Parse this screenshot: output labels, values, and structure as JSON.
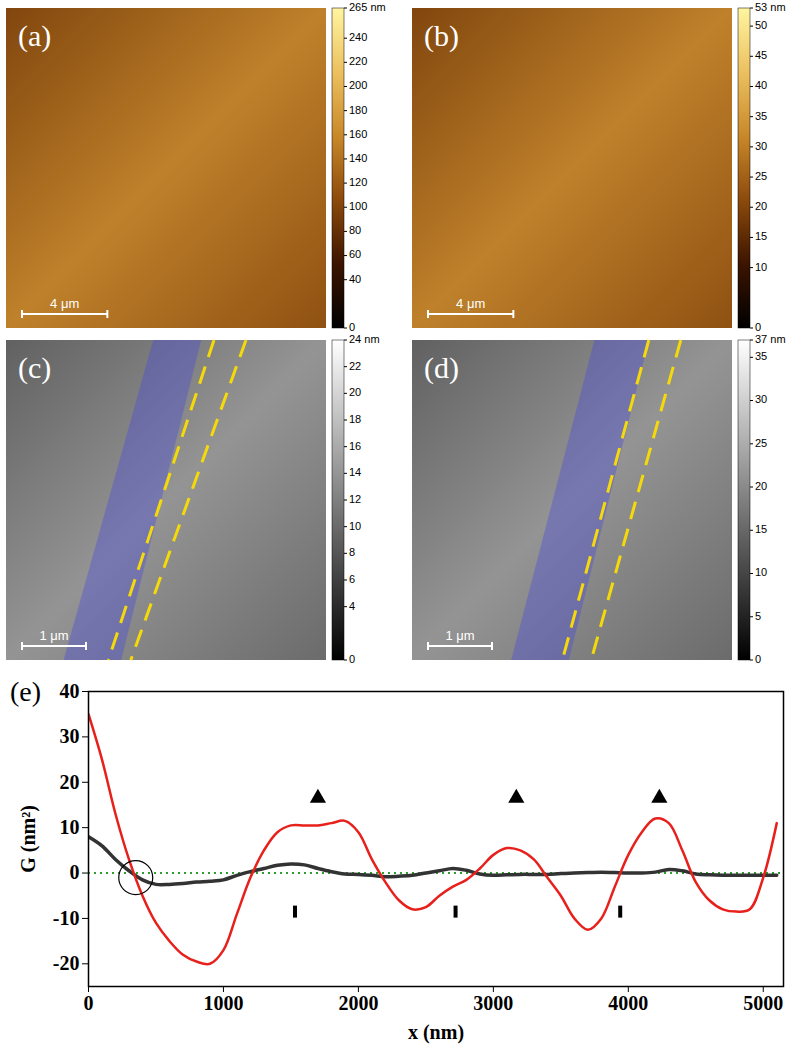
{
  "panels": [
    {
      "label": "(a)",
      "xlim": [
        0,
        15
      ],
      "scale_bar": {
        "label": "4 μm",
        "value": 4
      },
      "colorbar": {
        "range": [
          0,
          265
        ],
        "ticks": [
          {
            "value": 265,
            "label": "265 nm"
          },
          240,
          220,
          200,
          180,
          160,
          140,
          120,
          100,
          80,
          60,
          40,
          0
        ],
        "colors": [
          "#000000",
          "#3c1400",
          "#8c4a0c",
          "#c8882a",
          "#ecc060",
          "#fff5a0"
        ]
      }
    },
    {
      "label": "(b)",
      "xlim": [
        0,
        15
      ],
      "scale_bar": {
        "label": "4 μm",
        "value": 4
      },
      "colorbar": {
        "range": [
          0,
          53
        ],
        "ticks": [
          {
            "value": 53,
            "label": "53 nm"
          },
          50,
          45,
          40,
          35,
          30,
          25,
          20,
          15,
          10,
          0
        ],
        "colors": [
          "#000000",
          "#3c1400",
          "#8c4a0c",
          "#c8882a",
          "#ecc060",
          "#fff5a0"
        ]
      }
    },
    {
      "label": "(c)",
      "xlim": [
        0,
        5
      ],
      "scale_bar": {
        "label": "1 μm",
        "value": 1
      },
      "colorbar": {
        "range": [
          0,
          24
        ],
        "ticks": [
          {
            "value": 24,
            "label": "24 nm"
          },
          22,
          20,
          18,
          16,
          14,
          12,
          10,
          8,
          6,
          4,
          0
        ],
        "colors": [
          "#000000",
          "#ffffff"
        ]
      }
    },
    {
      "label": "(d)",
      "xlim": [
        0,
        5
      ],
      "scale_bar": {
        "label": "1 μm",
        "value": 1
      },
      "colorbar": {
        "range": [
          0,
          37
        ],
        "ticks": [
          {
            "value": 37,
            "label": "37 nm"
          },
          35,
          30,
          25,
          20,
          15,
          10,
          5,
          0
        ],
        "colors": [
          "#000000",
          "#ffffff"
        ]
      }
    }
  ],
  "chart_data": {
    "type": "line",
    "title": "(e)",
    "x_label": "x (nm)",
    "y_label": "G (nm²)",
    "xlim": [
      0,
      5150
    ],
    "xticks": [
      0,
      1000,
      2000,
      3000,
      4000,
      5000
    ],
    "ylim": [
      -25,
      40
    ],
    "yticks": [
      -20,
      -10,
      0,
      10,
      20,
      30,
      40
    ],
    "x": [
      0,
      100,
      200,
      300,
      400,
      500,
      600,
      700,
      800,
      900,
      1000,
      1100,
      1200,
      1300,
      1400,
      1500,
      1600,
      1700,
      1800,
      1900,
      2000,
      2100,
      2200,
      2300,
      2400,
      2500,
      2600,
      2700,
      2800,
      2900,
      3000,
      3100,
      3200,
      3300,
      3400,
      3500,
      3600,
      3700,
      3800,
      3900,
      4000,
      4100,
      4200,
      4300,
      4400,
      4500,
      4600,
      4700,
      4800,
      4900,
      5000,
      5100
    ],
    "series": [
      {
        "color": "#e8201c",
        "values": [
          35,
          25,
          13,
          3,
          -5,
          -11,
          -15,
          -18,
          -19.5,
          -20,
          -17,
          -9,
          -1,
          5,
          9,
          10.5,
          10.5,
          10.5,
          11,
          11.5,
          9,
          3,
          -2,
          -6,
          -8,
          -7.5,
          -5,
          -3,
          -1.5,
          1,
          4,
          5.5,
          5,
          3,
          -1,
          -5,
          -10,
          -12.5,
          -10,
          -3,
          4,
          9,
          12,
          11,
          5,
          -2,
          -6,
          -8,
          -8.5,
          -8,
          -1,
          11
        ]
      },
      {
        "color": "#333333",
        "values": [
          8,
          6,
          3,
          0.5,
          -1.5,
          -2.5,
          -2.5,
          -2.3,
          -2,
          -1.8,
          -1.5,
          -0.5,
          0.3,
          1,
          1.7,
          2,
          1.8,
          1,
          0.3,
          -0.2,
          -0.3,
          -0.5,
          -0.8,
          -0.7,
          -0.5,
          0,
          0.5,
          1,
          0.6,
          -0.2,
          -0.5,
          -0.4,
          -0.3,
          -0.3,
          -0.3,
          -0.1,
          0,
          0.1,
          0.2,
          0.1,
          0,
          0,
          0.2,
          0.8,
          0.5,
          -0.2,
          -0.4,
          -0.5,
          -0.5,
          -0.5,
          -0.5,
          -0.5
        ]
      }
    ],
    "reference_line": {
      "y": 0,
      "color": "#2ca02c",
      "line_style": "dotted"
    },
    "annotations": [
      {
        "marker": "triangle",
        "x": [
          1700,
          3170,
          4230
        ],
        "y": [
          16.5,
          16.5,
          16.5
        ]
      },
      {
        "marker": "bar",
        "x": [
          1530,
          2720,
          3940
        ],
        "y": [
          -8.5,
          -8.5,
          -8.5
        ]
      },
      {
        "marker": "circle",
        "x": [
          350
        ],
        "y": [
          -1
        ]
      }
    ]
  }
}
